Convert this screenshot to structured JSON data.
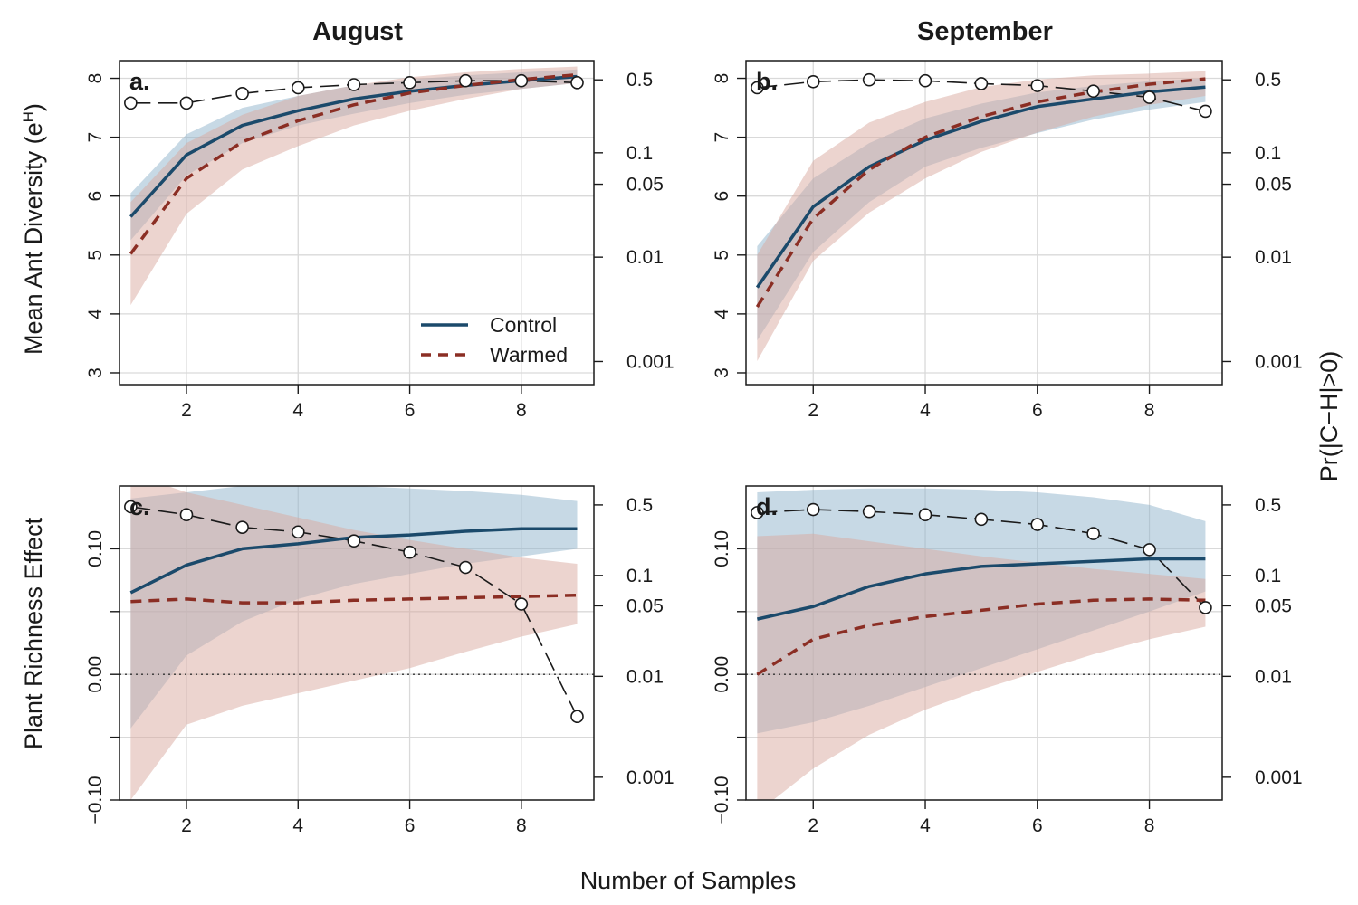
{
  "figure": {
    "column_titles": [
      "August",
      "September"
    ],
    "left_axis_titles": {
      "top": "Mean Ant Diversity (e",
      "top_sup": "H",
      "top_close": ")",
      "bottom": "Plant Richness Effect"
    },
    "right_axis_title": "Pr(|C−H|>0)",
    "x_axis_title": "Number of Samples",
    "legend": {
      "control_label": "Control",
      "warmed_label": "Warmed"
    }
  },
  "colors": {
    "control": "#1b4a6b",
    "warmed": "#8b2e24",
    "control_band": "#8fb4cc",
    "warmed_band": "#d9a9a0",
    "grid": "#d9d9d9",
    "prob": "#1a1a1a"
  },
  "chart_data": [
    {
      "id": "a",
      "tag": "a.",
      "type": "line",
      "column_title": "August",
      "x": [
        1,
        2,
        3,
        4,
        5,
        6,
        7,
        8,
        9
      ],
      "xticks": [
        2,
        4,
        6,
        8
      ],
      "xlim": [
        0.8,
        9.3
      ],
      "ylim": [
        2.8,
        8.3
      ],
      "yticks": [
        3,
        4,
        5,
        6,
        7,
        8
      ],
      "y2_log": true,
      "y2ticks": [
        0.001,
        0.01,
        0.05,
        0.1,
        0.5
      ],
      "y2ticklabels": [
        "0.001",
        "0.01",
        "0.05",
        "0.1",
        "0.5"
      ],
      "zero_line": false,
      "legend": "bottom-right",
      "series": [
        {
          "name": "Control",
          "values": [
            5.65,
            6.7,
            7.2,
            7.45,
            7.65,
            7.78,
            7.88,
            7.96,
            8.03
          ],
          "lower": [
            5.25,
            6.35,
            6.9,
            7.2,
            7.4,
            7.58,
            7.72,
            7.82,
            7.92
          ],
          "upper": [
            6.05,
            7.05,
            7.5,
            7.7,
            7.88,
            7.98,
            8.05,
            8.1,
            8.15
          ]
        },
        {
          "name": "Warmed",
          "values": [
            5.02,
            6.3,
            6.92,
            7.28,
            7.55,
            7.75,
            7.88,
            7.98,
            8.06
          ],
          "lower": [
            4.15,
            5.7,
            6.45,
            6.85,
            7.2,
            7.45,
            7.65,
            7.82,
            7.92
          ],
          "upper": [
            5.9,
            6.9,
            7.38,
            7.7,
            7.88,
            8.02,
            8.1,
            8.16,
            8.2
          ]
        }
      ],
      "probability": [
        0.3,
        0.3,
        0.37,
        0.42,
        0.45,
        0.47,
        0.49,
        0.49,
        0.47
      ]
    },
    {
      "id": "b",
      "tag": "b.",
      "type": "line",
      "column_title": "September",
      "x": [
        1,
        2,
        3,
        4,
        5,
        6,
        7,
        8,
        9
      ],
      "xticks": [
        2,
        4,
        6,
        8
      ],
      "xlim": [
        0.8,
        9.3
      ],
      "ylim": [
        2.8,
        8.3
      ],
      "yticks": [
        3,
        4,
        5,
        6,
        7,
        8
      ],
      "y2_log": true,
      "y2ticks": [
        0.001,
        0.01,
        0.05,
        0.1,
        0.5
      ],
      "y2ticklabels": [
        "0.001",
        "0.01",
        "0.05",
        "0.1",
        "0.5"
      ],
      "zero_line": false,
      "series": [
        {
          "name": "Control",
          "values": [
            4.45,
            5.82,
            6.5,
            6.95,
            7.27,
            7.52,
            7.65,
            7.77,
            7.85
          ],
          "lower": [
            3.55,
            5.05,
            5.9,
            6.5,
            6.82,
            7.07,
            7.3,
            7.47,
            7.6
          ],
          "upper": [
            5.15,
            6.3,
            6.9,
            7.32,
            7.57,
            7.76,
            7.87,
            7.95,
            8.0
          ]
        },
        {
          "name": "Warmed",
          "values": [
            4.12,
            5.62,
            6.45,
            7.0,
            7.35,
            7.6,
            7.77,
            7.9,
            7.99
          ],
          "lower": [
            3.2,
            4.9,
            5.72,
            6.3,
            6.75,
            7.08,
            7.35,
            7.55,
            7.7
          ],
          "upper": [
            5.0,
            6.6,
            7.25,
            7.6,
            7.85,
            7.98,
            8.05,
            8.08,
            8.12
          ]
        }
      ],
      "probability": [
        0.42,
        0.48,
        0.5,
        0.49,
        0.46,
        0.44,
        0.39,
        0.34,
        0.25
      ]
    },
    {
      "id": "c",
      "tag": "c.",
      "type": "line",
      "x": [
        1,
        2,
        3,
        4,
        5,
        6,
        7,
        8,
        9
      ],
      "xticks": [
        2,
        4,
        6,
        8
      ],
      "xlim": [
        0.8,
        9.3
      ],
      "ylim": [
        -0.1,
        0.15
      ],
      "yticks": [
        -0.1,
        -0.05,
        0.0,
        0.05,
        0.1
      ],
      "yticklabels": [
        "−0.10",
        "",
        "0.00",
        "",
        "0.10"
      ],
      "y2_log": true,
      "y2ticks": [
        0.001,
        0.01,
        0.05,
        0.1,
        0.5
      ],
      "y2ticklabels": [
        "0.001",
        "0.01",
        "0.05",
        "0.1",
        "0.5"
      ],
      "zero_line": true,
      "series": [
        {
          "name": "Control",
          "values": [
            0.065,
            0.087,
            0.1,
            0.104,
            0.109,
            0.111,
            0.114,
            0.116,
            0.116
          ],
          "lower": [
            -0.043,
            0.015,
            0.042,
            0.06,
            0.072,
            0.08,
            0.088,
            0.094,
            0.1
          ],
          "upper": [
            0.14,
            0.145,
            0.15,
            0.15,
            0.15,
            0.148,
            0.146,
            0.143,
            0.138
          ]
        },
        {
          "name": "Warmed",
          "values": [
            0.058,
            0.06,
            0.057,
            0.057,
            0.059,
            0.06,
            0.061,
            0.062,
            0.063
          ],
          "lower": [
            -0.1,
            -0.04,
            -0.025,
            -0.015,
            -0.005,
            0.005,
            0.018,
            0.03,
            0.04
          ],
          "upper": [
            0.16,
            0.145,
            0.135,
            0.125,
            0.115,
            0.107,
            0.1,
            0.093,
            0.088
          ]
        }
      ],
      "probability": [
        0.48,
        0.4,
        0.3,
        0.27,
        0.22,
        0.17,
        0.12,
        0.052,
        0.004
      ]
    },
    {
      "id": "d",
      "tag": "d.",
      "type": "line",
      "x": [
        1,
        2,
        3,
        4,
        5,
        6,
        7,
        8,
        9
      ],
      "xticks": [
        2,
        4,
        6,
        8
      ],
      "xlim": [
        0.8,
        9.3
      ],
      "ylim": [
        -0.1,
        0.15
      ],
      "yticks": [
        -0.1,
        -0.05,
        0.0,
        0.05,
        0.1
      ],
      "yticklabels": [
        "−0.10",
        "",
        "0.00",
        "",
        "0.10"
      ],
      "y2_log": true,
      "y2ticks": [
        0.001,
        0.01,
        0.05,
        0.1,
        0.5
      ],
      "y2ticklabels": [
        "0.001",
        "0.01",
        "0.05",
        "0.1",
        "0.5"
      ],
      "zero_line": true,
      "series": [
        {
          "name": "Control",
          "values": [
            0.044,
            0.054,
            0.07,
            0.08,
            0.086,
            0.088,
            0.09,
            0.092,
            0.092
          ],
          "lower": [
            -0.047,
            -0.038,
            -0.025,
            -0.01,
            0.005,
            0.02,
            0.035,
            0.05,
            0.066
          ],
          "upper": [
            0.145,
            0.147,
            0.148,
            0.148,
            0.147,
            0.145,
            0.141,
            0.135,
            0.122
          ]
        },
        {
          "name": "Warmed",
          "values": [
            0.0,
            0.028,
            0.039,
            0.046,
            0.051,
            0.056,
            0.059,
            0.06,
            0.059
          ],
          "lower": [
            -0.11,
            -0.075,
            -0.048,
            -0.028,
            -0.012,
            0.002,
            0.016,
            0.028,
            0.038
          ],
          "upper": [
            0.11,
            0.112,
            0.106,
            0.1,
            0.094,
            0.089,
            0.084,
            0.08,
            0.076
          ]
        }
      ],
      "probability": [
        0.42,
        0.45,
        0.43,
        0.4,
        0.36,
        0.32,
        0.26,
        0.18,
        0.048
      ]
    }
  ]
}
